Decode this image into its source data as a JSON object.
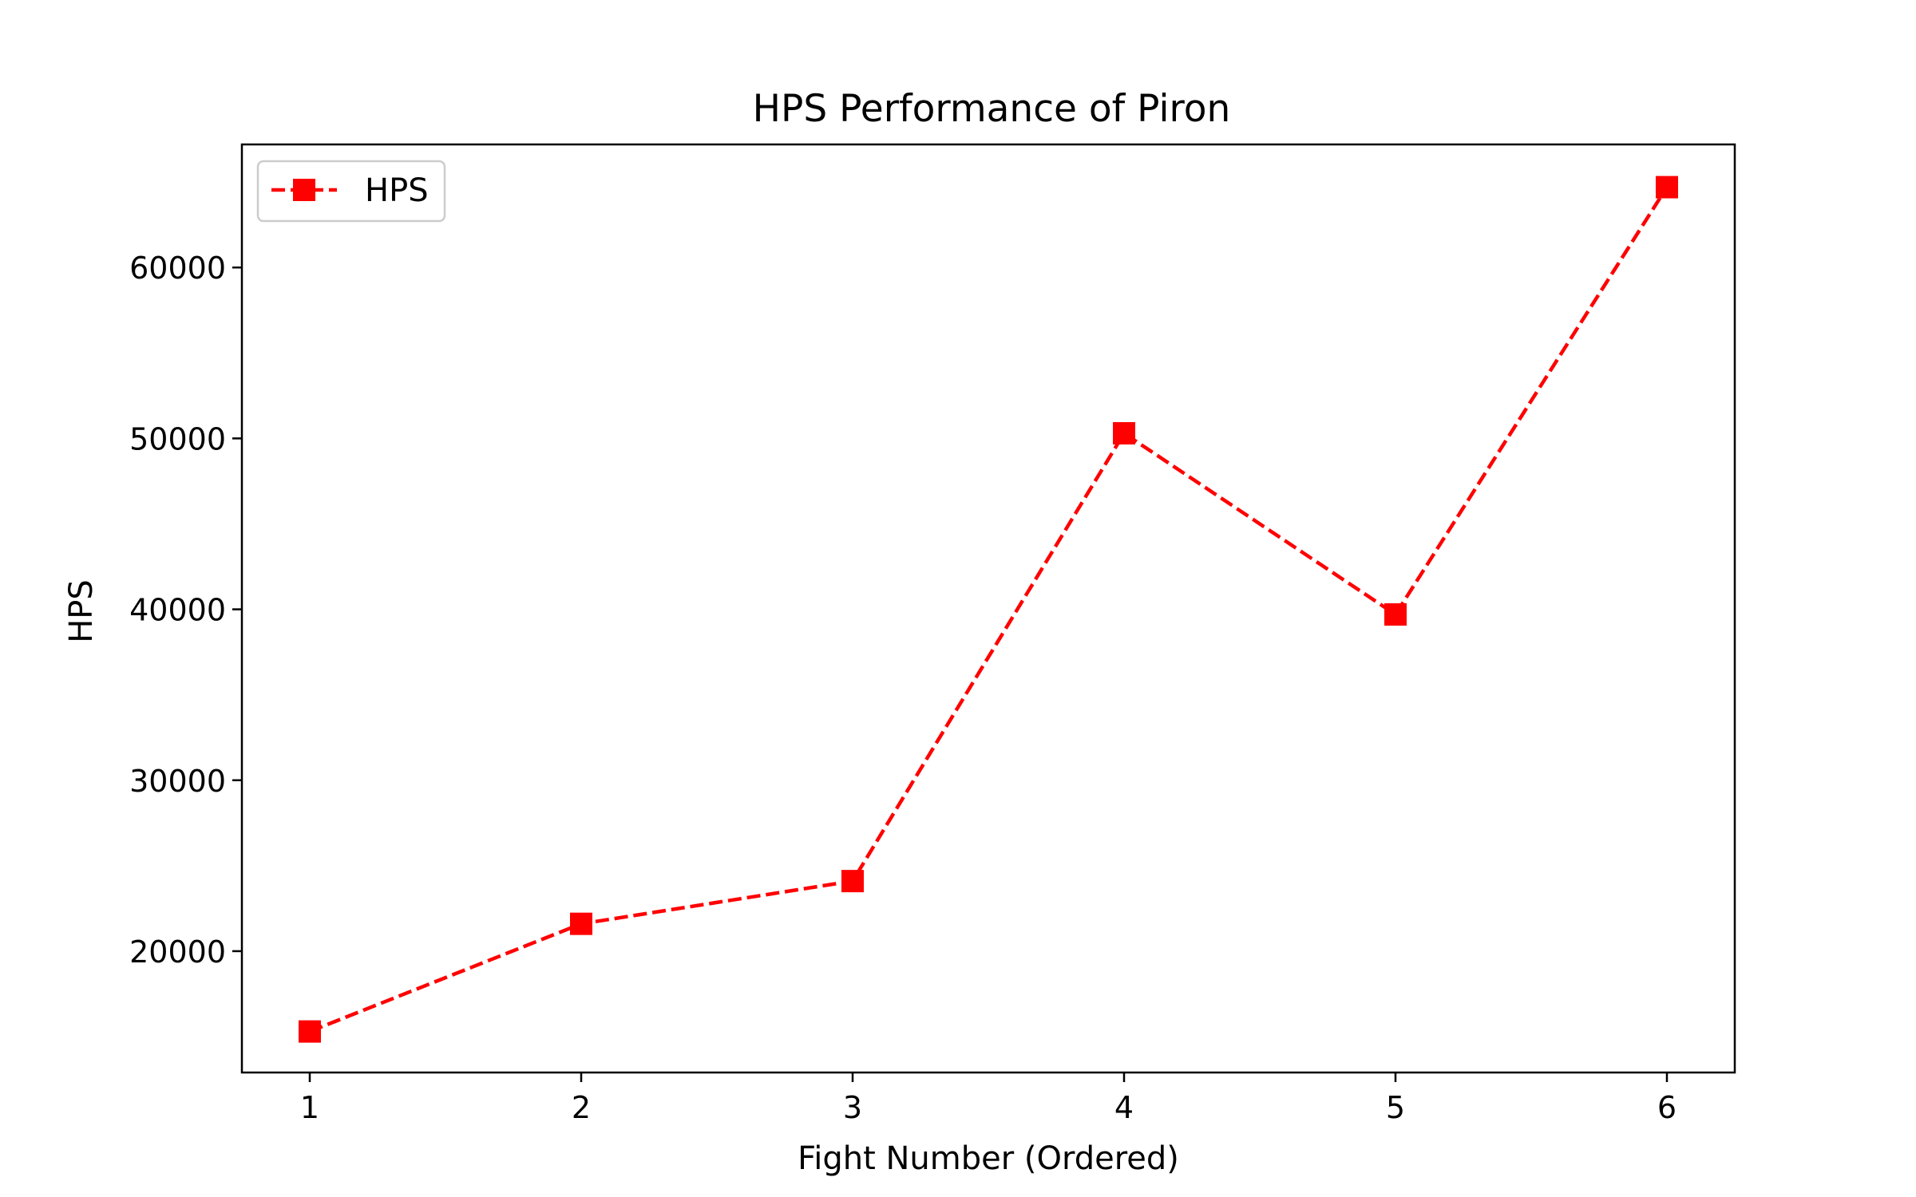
{
  "chart_data": {
    "type": "line",
    "title": "HPS Performance of Piron",
    "xlabel": "Fight Number (Ordered)",
    "ylabel": "HPS",
    "x": [
      1,
      2,
      3,
      4,
      5,
      6
    ],
    "xticks": [
      "1",
      "2",
      "3",
      "4",
      "5",
      "6"
    ],
    "yticks": [
      "20000",
      "30000",
      "40000",
      "50000",
      "60000"
    ],
    "xlim": [
      0.75,
      6.25
    ],
    "ylim": [
      12900,
      67200
    ],
    "grid": false,
    "legend_position": "upper-left",
    "series": [
      {
        "name": "HPS",
        "color": "#ff0000",
        "line_style": "dashed",
        "marker": "square",
        "values": [
          15300,
          21600,
          24100,
          50300,
          39700,
          64700
        ]
      }
    ]
  }
}
